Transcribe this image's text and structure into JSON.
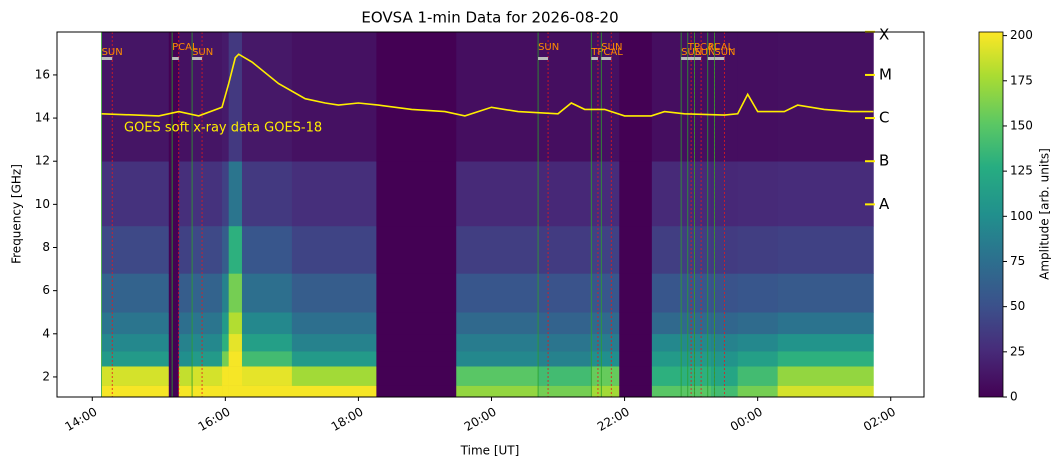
{
  "chart_data": {
    "type": "heatmap",
    "title": "EOVSA 1-min Data for 2026-08-20",
    "xlabel": "Time [UT]",
    "ylabel": "Frequency [GHz]",
    "colorbar_label": "Amplitude [arb. units]",
    "colormap": "viridis",
    "x_edges": [
      14.14,
      15.15,
      15.3,
      15.5,
      15.95,
      16.05,
      16.25,
      17.0,
      18.27,
      19.47,
      20.7,
      21.5,
      21.92,
      22.41,
      23.3,
      23.7,
      24.3,
      25.74
    ],
    "y_edges": [
      1.07,
      1.6,
      2.5,
      3.2,
      4,
      5,
      6.8,
      9,
      12,
      17.99
    ],
    "z": [
      [
        200,
        190,
        110,
        95,
        80,
        65,
        45,
        30,
        12
      ],
      [
        0,
        0,
        0,
        0,
        0,
        0,
        0,
        0,
        0
      ],
      [
        200,
        185,
        100,
        90,
        75,
        60,
        40,
        28,
        10
      ],
      [
        200,
        190,
        110,
        95,
        80,
        65,
        45,
        30,
        12
      ],
      [
        200,
        200,
        160,
        130,
        110,
        90,
        60,
        40,
        15
      ],
      [
        200,
        200,
        200,
        195,
        180,
        160,
        130,
        80,
        35
      ],
      [
        200,
        195,
        140,
        115,
        95,
        75,
        55,
        35,
        14
      ],
      [
        200,
        175,
        110,
        90,
        75,
        60,
        42,
        28,
        10
      ],
      [
        0,
        0,
        0,
        0,
        0,
        0,
        0,
        0,
        0
      ],
      [
        170,
        150,
        95,
        85,
        70,
        55,
        38,
        25,
        8
      ],
      [
        160,
        140,
        90,
        80,
        65,
        52,
        36,
        24,
        8
      ],
      [
        175,
        155,
        100,
        85,
        70,
        55,
        40,
        26,
        9
      ],
      [
        0,
        0,
        0,
        0,
        0,
        0,
        0,
        0,
        0
      ],
      [
        150,
        130,
        110,
        95,
        70,
        55,
        38,
        25,
        8
      ],
      [
        140,
        120,
        105,
        90,
        68,
        52,
        36,
        24,
        8
      ],
      [
        160,
        140,
        115,
        95,
        72,
        55,
        38,
        25,
        8
      ],
      [
        190,
        170,
        130,
        105,
        78,
        58,
        40,
        26,
        9
      ]
    ],
    "xlim": [
      13.47,
      26.5
    ],
    "xticks": [
      {
        "value": 14,
        "label": "14:00"
      },
      {
        "value": 16,
        "label": "16:00"
      },
      {
        "value": 18,
        "label": "18:00"
      },
      {
        "value": 20,
        "label": "20:00"
      },
      {
        "value": 22,
        "label": "22:00"
      },
      {
        "value": 24,
        "label": "00:00"
      },
      {
        "value": 26,
        "label": "02:00"
      }
    ],
    "ylim": [
      1.07,
      17.99
    ],
    "yticks": [
      2,
      4,
      6,
      8,
      10,
      12,
      14,
      16
    ],
    "clim": [
      0,
      202
    ],
    "cticks": [
      0,
      25,
      50,
      75,
      100,
      125,
      150,
      175,
      200
    ],
    "y2lim": [
      -12.465,
      -4.005
    ],
    "y2ticks": [
      {
        "value": -8,
        "label": "A"
      },
      {
        "value": -7,
        "label": "B"
      },
      {
        "value": -6,
        "label": "C"
      },
      {
        "value": -5,
        "label": "M"
      },
      {
        "value": -4,
        "label": "X"
      }
    ],
    "series": [
      {
        "name": "GOES soft x-ray data GOES-18",
        "color": "#ffee00",
        "axis": "y2",
        "x": [
          14.14,
          15.0,
          15.3,
          15.6,
          15.95,
          16.05,
          16.15,
          16.2,
          16.4,
          16.8,
          17.2,
          17.5,
          17.7,
          18.0,
          18.3,
          18.8,
          19.3,
          19.6,
          20.0,
          20.4,
          21.0,
          21.2,
          21.4,
          21.7,
          22.0,
          22.4,
          22.6,
          22.9,
          23.5,
          23.7,
          23.85,
          24.0,
          24.4,
          24.6,
          25.0,
          25.4,
          25.74
        ],
        "values": [
          -5.9,
          -5.95,
          -5.85,
          -5.95,
          -5.75,
          -5.2,
          -4.6,
          -4.52,
          -4.7,
          -5.2,
          -5.55,
          -5.65,
          -5.7,
          -5.65,
          -5.7,
          -5.8,
          -5.85,
          -5.95,
          -5.75,
          -5.85,
          -5.9,
          -5.65,
          -5.8,
          -5.8,
          -5.95,
          -5.95,
          -5.85,
          -5.9,
          -5.93,
          -5.9,
          -5.45,
          -5.85,
          -5.85,
          -5.7,
          -5.8,
          -5.85,
          -5.85
        ]
      }
    ],
    "scans": [
      {
        "label": "SUN",
        "start": 14.14,
        "end": 14.3
      },
      {
        "label": "PCAL",
        "start": 15.2,
        "end": 15.3
      },
      {
        "label": "SUN",
        "start": 15.5,
        "end": 15.65
      },
      {
        "label": "SUN",
        "start": 20.7,
        "end": 20.85
      },
      {
        "label": "TPCAL",
        "start": 21.5,
        "end": 21.6
      },
      {
        "label": "SUN",
        "start": 21.65,
        "end": 21.8
      },
      {
        "label": "SUN",
        "start": 22.85,
        "end": 23.0
      },
      {
        "label": "TPCAL",
        "start": 22.95,
        "end": 23.05
      },
      {
        "label": "SUN",
        "start": 23.05,
        "end": 23.15
      },
      {
        "label": "PCAL",
        "start": 23.25,
        "end": 23.35
      },
      {
        "label": "SUN",
        "start": 23.35,
        "end": 23.5
      }
    ]
  }
}
